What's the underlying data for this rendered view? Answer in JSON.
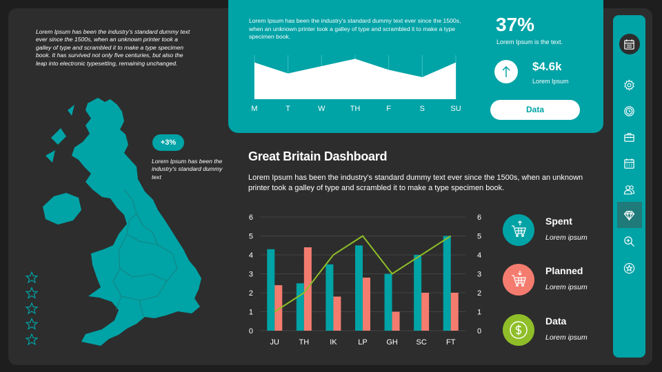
{
  "intro_text": "Lorem Ipsum has been the industry's standard dummy text ever since the 1500s, when an unknown printer took a galley of type and scrambled it to make a type specimen book. It has survived not only five centuries, but also the leap into electronic typesetting, remaining unchanged.",
  "map_badge": {
    "value": "+3%",
    "text": "Lorem Ipsum has been the industry's standard dummy text"
  },
  "top_card": {
    "text": "Lorem Ipsum has been the industry's standard dummy text ever since the 1500s, when an unknown printer took a galley of type and scrambled it to make a type specimen book.",
    "days": [
      "M",
      "T",
      "W",
      "TH",
      "F",
      "S",
      "SU"
    ],
    "area_values": [
      5,
      3.5,
      4.5,
      5.5,
      4,
      3,
      5
    ],
    "stat_pct": "37%",
    "stat_pct_label": "Lorem Ipsum is the text.",
    "stat_money": "$4.6k",
    "stat_money_label": "Lorem Ipsum",
    "data_button": "Data"
  },
  "dashboard": {
    "title": "Great Britain Dashboard",
    "description": "Lorem Ipsum has been the industry's standard dummy text ever since the 1500s, when an unknown printer took a galley of type and scrambled it to make a type specimen book."
  },
  "chart_data": {
    "type": "bar",
    "categories": [
      "JU",
      "TH",
      "IK",
      "LP",
      "GH",
      "SC",
      "FT"
    ],
    "series": [
      {
        "name": "Spent",
        "type": "bar",
        "values": [
          4.3,
          2.5,
          3.5,
          4.5,
          3.0,
          4.0,
          5.0
        ]
      },
      {
        "name": "Planned",
        "type": "bar",
        "values": [
          2.4,
          4.4,
          1.8,
          2.8,
          1.0,
          2.0,
          2.0
        ]
      },
      {
        "name": "Data",
        "type": "line",
        "values": [
          1.0,
          2.0,
          4.0,
          5.0,
          3.0,
          4.0,
          5.0
        ]
      }
    ],
    "ylim": [
      0,
      6
    ],
    "yticks": [
      "0",
      "1",
      "2",
      "3",
      "4",
      "5",
      "6"
    ],
    "grid": true,
    "colors": {
      "Spent": "#00a3a6",
      "Planned": "#f47c6f",
      "Data": "#8fbe28"
    }
  },
  "legend": [
    {
      "title": "Spent",
      "sub": "Lorem ipsum",
      "color": "#00a3a6",
      "icon": "cart-up-icon"
    },
    {
      "title": "Planned",
      "sub": "Lorem ipsum",
      "color": "#f47c6f",
      "icon": "cart-down-icon"
    },
    {
      "title": "Data",
      "sub": "Lorem ipsum",
      "color": "#8fbe28",
      "icon": "dollar-icon"
    }
  ],
  "sidebar": [
    "calendar-icon",
    "gear-icon",
    "clock-icon",
    "briefcase-icon",
    "schedule-icon",
    "users-icon",
    "diamond-icon",
    "zoom-icon",
    "star-icon"
  ],
  "colors": {
    "accent": "#00a3a6",
    "background": "#2d2d2d"
  }
}
